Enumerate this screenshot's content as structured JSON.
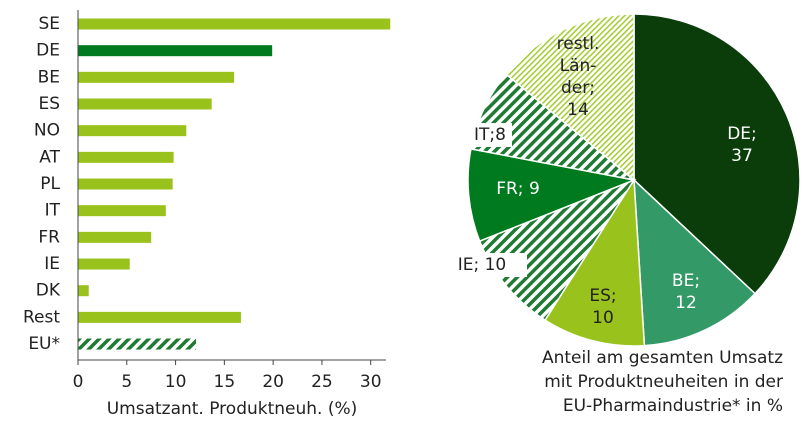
{
  "chart_data": [
    {
      "type": "bar",
      "orientation": "horizontal",
      "categories": [
        "SE",
        "DE",
        "BE",
        "ES",
        "NO",
        "AT",
        "PL",
        "IT",
        "FR",
        "IE",
        "DK",
        "Rest",
        "EU*"
      ],
      "values": [
        32.0,
        19.9,
        16.0,
        13.7,
        11.1,
        9.8,
        9.7,
        9.0,
        7.5,
        5.3,
        1.1,
        16.7,
        12.1
      ],
      "colors": [
        "#99c31c",
        "#007a1e",
        "#99c31c",
        "#99c31c",
        "#99c31c",
        "#99c31c",
        "#99c31c",
        "#99c31c",
        "#99c31c",
        "#99c31c",
        "#99c31c",
        "#99c31c",
        "hatch-dark"
      ],
      "xlabel": "Umsatzant. Produktneuh. (%)",
      "xlim": [
        0,
        33
      ],
      "xticks": [
        0,
        5,
        10,
        15,
        20,
        25,
        30
      ]
    },
    {
      "type": "pie",
      "values": [
        37,
        12,
        10,
        10,
        9,
        8,
        14
      ],
      "value_labels": [
        "DE;\n37",
        "BE;\n12",
        "ES;\n10",
        "IE; 10",
        "FR; 9",
        "IT;8",
        "restl.\nLän-\nder;\n14"
      ],
      "colors": [
        "#0a3d0a",
        "#339966",
        "#99c31c",
        "hatch-dark",
        "#007a1e",
        "hatch-dark",
        "hatch-light"
      ],
      "caption": [
        "Anteil am gesamten Umsatz",
        "mit Produktneuheiten in der",
        "EU-Pharmaindustrie* in %"
      ]
    }
  ]
}
